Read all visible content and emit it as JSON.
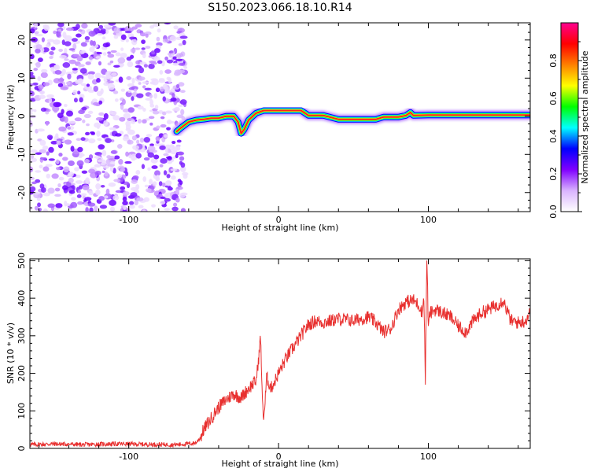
{
  "title": "S150.2023.066.18.10.R14",
  "chart_data": [
    {
      "type": "heatmap",
      "xlabel": "Height of straight line (km)",
      "ylabel": "Frequency (Hz)",
      "xlim": [
        -166,
        168
      ],
      "ylim": [
        -25,
        24.5
      ],
      "x_ticks": [
        -100,
        0,
        100
      ],
      "y_ticks": [
        -20,
        -10,
        0,
        10,
        20
      ],
      "noise_region_x": [
        -166,
        -65
      ],
      "ridge": {
        "x": [
          -68,
          -65,
          -60,
          -55,
          -50,
          -45,
          -40,
          -35,
          -30,
          -27,
          -25,
          -23,
          -20,
          -15,
          -10,
          0,
          10,
          15,
          20,
          30,
          40,
          50,
          60,
          65,
          70,
          80,
          85,
          88,
          90,
          100,
          110,
          120,
          130,
          140,
          150,
          160,
          168
        ],
        "freq": [
          -4,
          -3,
          -1.5,
          -1,
          -0.8,
          -0.5,
          -0.5,
          0,
          0,
          -1.5,
          -4.5,
          -3.5,
          -1,
          0.8,
          1.5,
          1.5,
          1.5,
          1.5,
          0.2,
          0.2,
          -0.8,
          -0.8,
          -0.8,
          -0.8,
          -0.2,
          -0.2,
          0.2,
          1,
          0.2,
          0.3,
          0.3,
          0.3,
          0.3,
          0.3,
          0.3,
          0.3,
          0.3
        ]
      },
      "colorbar": {
        "label": "Normalized spectral amplitude",
        "range": [
          0,
          1
        ],
        "ticks": [
          0.0,
          0.2,
          0.4,
          0.6,
          0.8
        ],
        "colors": [
          "#ffffff",
          "#d9b3ff",
          "#8000ff",
          "#0000ff",
          "#00ffff",
          "#00ff00",
          "#ffff00",
          "#ff8000",
          "#ff0000",
          "#ff0090"
        ]
      },
      "grid": false
    },
    {
      "type": "line",
      "xlabel": "Height of straight line (km)",
      "ylabel": "SNR (10 * v/v)",
      "xlim": [
        -166,
        168
      ],
      "ylim": [
        0,
        505
      ],
      "x_ticks": [
        -100,
        0,
        100
      ],
      "y_ticks": [
        0,
        100,
        200,
        300,
        400,
        500
      ],
      "color": "#e8302f",
      "series": [
        {
          "x": [
            -166,
            -150,
            -130,
            -110,
            -90,
            -70,
            -60,
            -55,
            -52,
            -50,
            -45,
            -40,
            -35,
            -30,
            -25,
            -20,
            -15,
            -13,
            -12,
            -11,
            -10,
            -9,
            -8,
            -5,
            0,
            5,
            10,
            15,
            20,
            25,
            30,
            40,
            50,
            60,
            65,
            70,
            75,
            80,
            85,
            90,
            94,
            96,
            97,
            98,
            99,
            100,
            101,
            105,
            110,
            115,
            120,
            125,
            130,
            135,
            140,
            145,
            150,
            155,
            160,
            165,
            168
          ],
          "y": [
            10,
            12,
            10,
            12,
            11,
            10,
            12,
            15,
            30,
            50,
            80,
            110,
            130,
            145,
            135,
            160,
            180,
            250,
            300,
            150,
            80,
            120,
            190,
            160,
            200,
            240,
            270,
            300,
            330,
            340,
            335,
            345,
            340,
            350,
            335,
            310,
            320,
            370,
            390,
            395,
            380,
            360,
            410,
            180,
            510,
            320,
            360,
            370,
            360,
            350,
            325,
            310,
            340,
            360,
            370,
            380,
            395,
            340,
            335,
            340,
            365
          ]
        }
      ],
      "grid": false
    }
  ]
}
